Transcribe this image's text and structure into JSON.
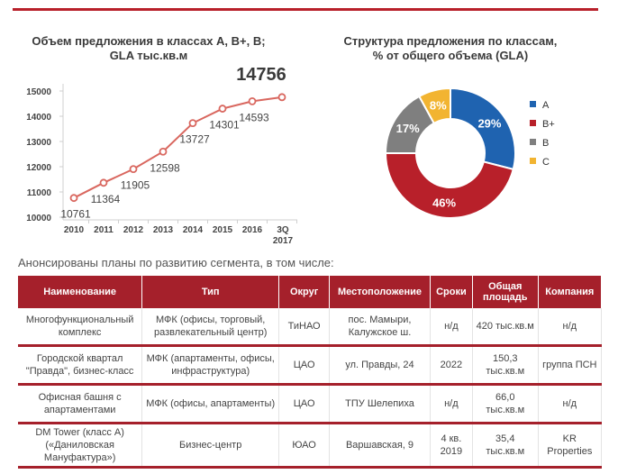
{
  "line_chart": {
    "title_line1": "Объем предложения в классах A, B+, B;",
    "title_line2": "GLA тыс.кв.м",
    "highlight_value": "14756",
    "last_tick_line1": "3Q",
    "last_tick_line2": "2017"
  },
  "donut_chart": {
    "title_line1": "Структура предложения по классам,",
    "title_line2": "% от общего объема (GLA)"
  },
  "chart_data": [
    {
      "type": "line",
      "title": "Объем предложения в классах A, B+, B; GLA тыс.кв.м",
      "x": [
        "2010",
        "2011",
        "2012",
        "2013",
        "2014",
        "2015",
        "2016",
        "3Q 2017"
      ],
      "values": [
        10761,
        11364,
        11905,
        12598,
        13727,
        14301,
        14593,
        14756
      ],
      "y_ticks": [
        10000,
        11000,
        12000,
        13000,
        14000,
        15000
      ],
      "ylim": [
        10000,
        15000
      ],
      "color": "#d9675f"
    },
    {
      "type": "pie",
      "title": "Структура предложения по классам, % от общего объема (GLA)",
      "labels": [
        "A",
        "B+",
        "B",
        "C"
      ],
      "values": [
        29,
        46,
        17,
        8
      ],
      "value_labels": [
        "29%",
        "46%",
        "17%",
        "8%"
      ],
      "colors": [
        "#1f63b0",
        "#b8202a",
        "#7f7f7f",
        "#f2b431"
      ],
      "legend_position": "right"
    }
  ],
  "subheading": "Анонсированы планы по развитию сегмента, в том числе:",
  "table": {
    "headers": [
      "Наименование",
      "Тип",
      "Округ",
      "Местоположение",
      "Сроки",
      "Общая площадь",
      "Компания"
    ],
    "rows": [
      [
        "Многофункциональный комплекс",
        "МФК (офисы, торговый, развлекательный центр)",
        "ТиНАО",
        "пос. Мамыри, Калужское ш.",
        "н/д",
        "420 тыс.кв.м",
        "н/д"
      ],
      [
        "Городской квартал \"Правда\", бизнес-класс",
        "МФК (апартаменты, офисы, инфраструктура)",
        "ЦАО",
        "ул. Правды, 24",
        "2022",
        "150,3 тыс.кв.м",
        "группа ПСН"
      ],
      [
        "Офисная башня с апартаментами",
        "МФК (офисы, апартаменты)",
        "ЦАО",
        "ТПУ Шелепиха",
        "н/д",
        "66,0 тыс.кв.м",
        "н/д"
      ],
      [
        "DM Tower (класс А) («Даниловская Мануфактура»)",
        "Бизнес-центр",
        "ЮАО",
        "Варшавская, 9",
        "4 кв. 2019",
        "35,4 тыс.кв.м",
        "KR Properties"
      ]
    ]
  }
}
